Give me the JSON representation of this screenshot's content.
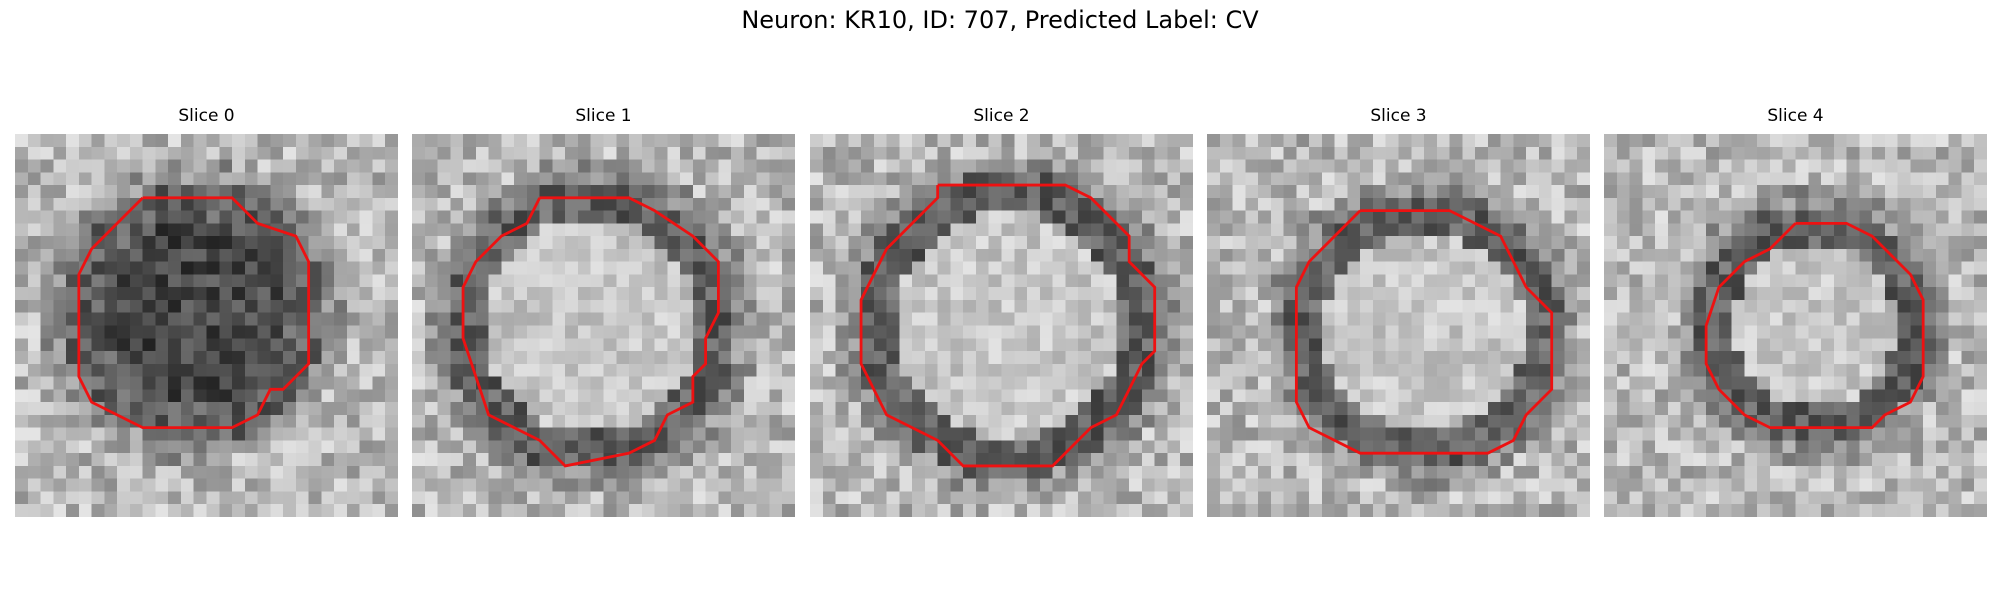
{
  "figure": {
    "suptitle": "Neuron: KR10, ID: 707, Predicted Label: CV",
    "contour_color": "#ee1111"
  },
  "slices": [
    {
      "title": "Slice 0",
      "interior": "dark"
    },
    {
      "title": "Slice 1",
      "interior": "light"
    },
    {
      "title": "Slice 2",
      "interior": "light"
    },
    {
      "title": "Slice 3",
      "interior": "light"
    },
    {
      "title": "Slice 4",
      "interior": "light"
    }
  ]
}
